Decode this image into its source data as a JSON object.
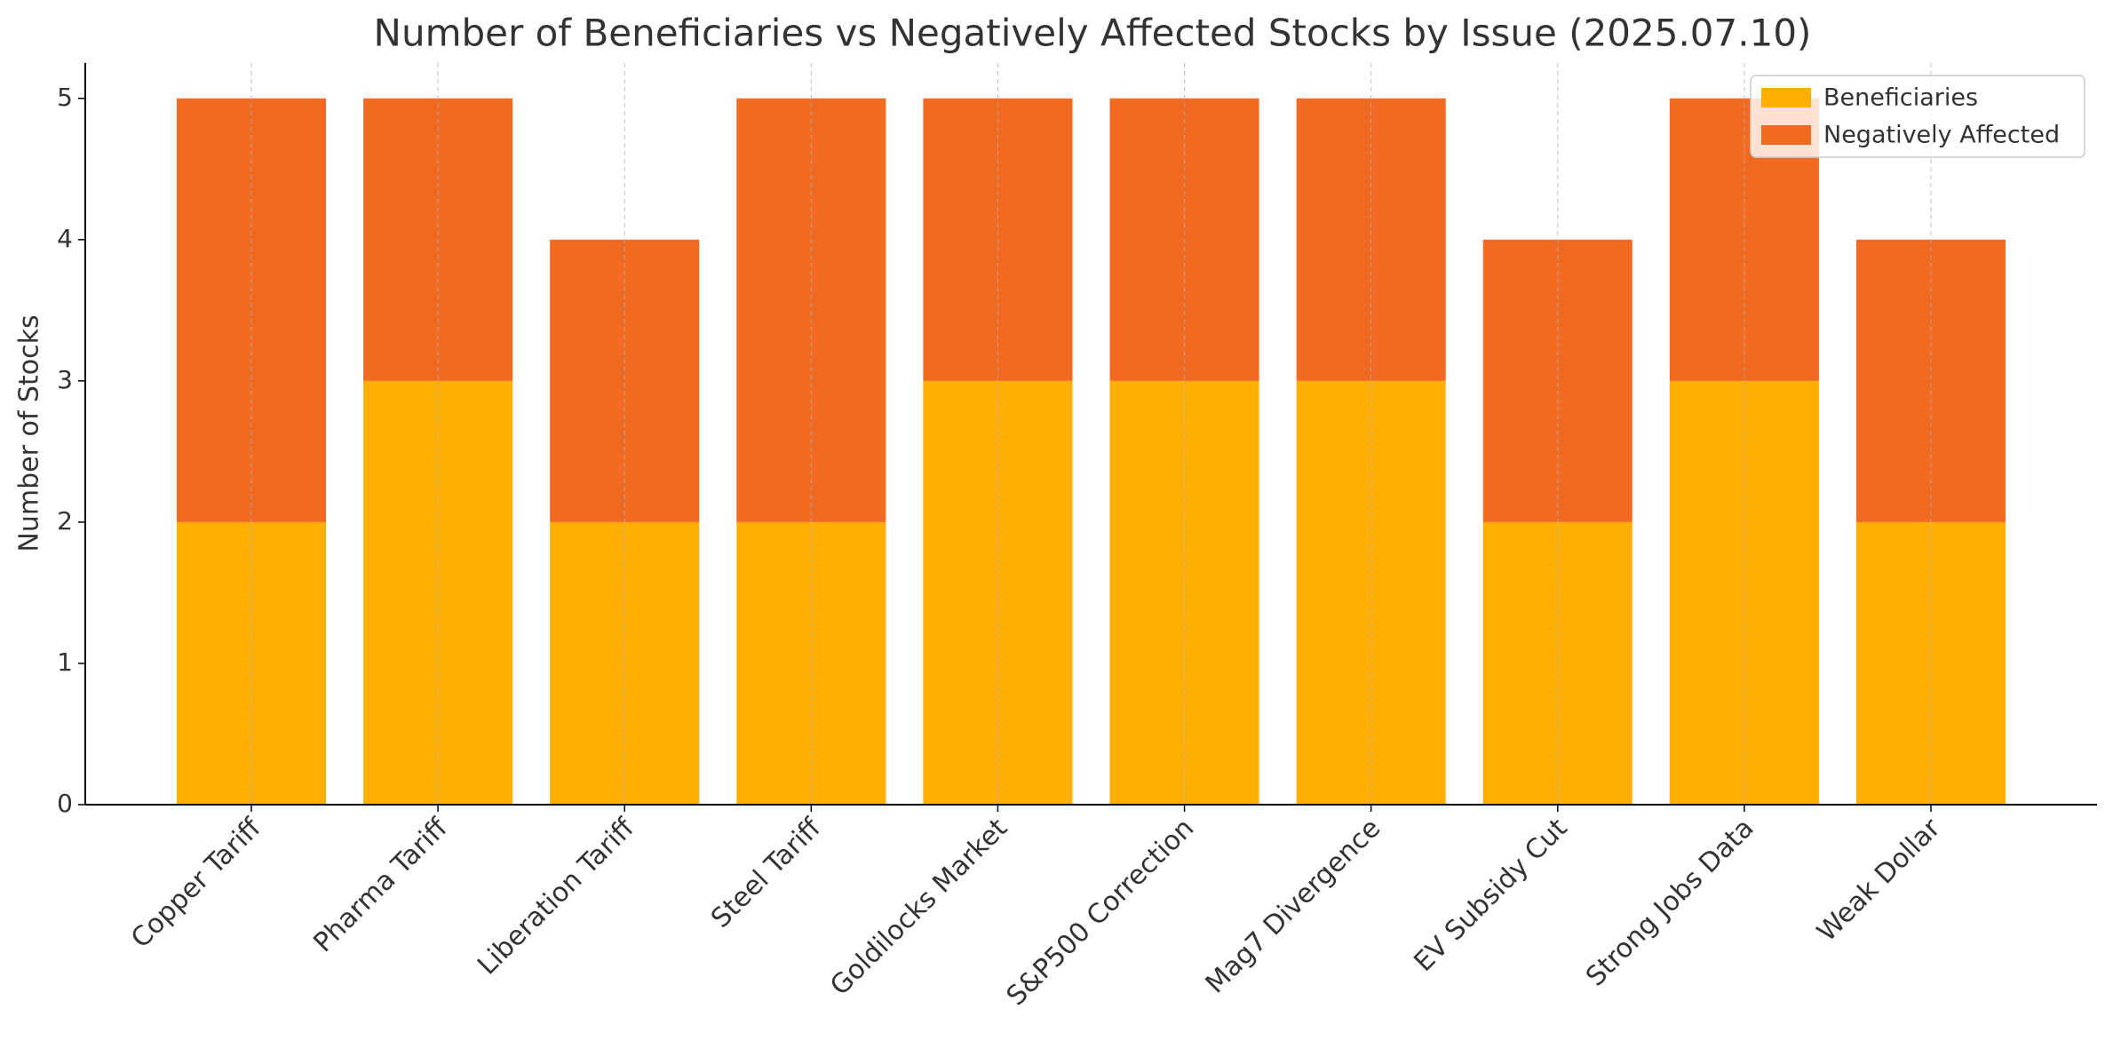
{
  "chart_data": {
    "type": "stacked_bar",
    "title": "Number of Beneficiaries vs Negatively Affected Stocks by Issue (2025.07.10)",
    "y_label": "Number of Stocks",
    "categories": [
      "Copper Tariff",
      "Pharma Tariff",
      "Liberation Tariff",
      "Steel Tariff",
      "Goldilocks Market",
      "S&P500 Correction",
      "Mag7 Divergence",
      "EV Subsidy Cut",
      "Strong Jobs Data",
      "Weak Dollar"
    ],
    "series": [
      {
        "name": "Beneficiaries",
        "color": "#ffae03",
        "values": [
          2,
          3,
          2,
          2,
          3,
          3,
          3,
          2,
          3,
          2
        ]
      },
      {
        "name": "Negatively Affected",
        "color": "#f26a22",
        "values": [
          3,
          2,
          2,
          3,
          2,
          2,
          2,
          2,
          2,
          2
        ]
      }
    ],
    "ylim": [
      0,
      5.25
    ],
    "yticks": [
      0,
      1,
      2,
      3,
      4,
      5
    ],
    "grid": "x",
    "legend": "upper right"
  }
}
